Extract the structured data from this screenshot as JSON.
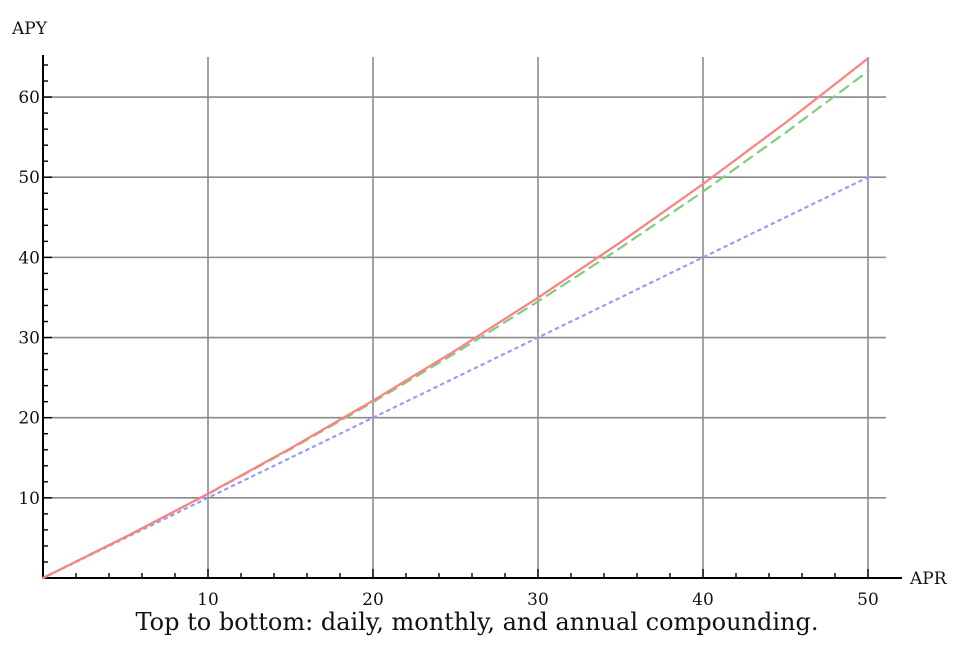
{
  "chart_data": {
    "type": "line",
    "title": "",
    "xlabel": "APR",
    "ylabel": "APY",
    "xlim": [
      0,
      50
    ],
    "ylim": [
      0,
      65
    ],
    "xticks": [
      10,
      20,
      30,
      40,
      50
    ],
    "yticks": [
      10,
      20,
      30,
      40,
      50,
      60
    ],
    "grid": true,
    "caption": "Top to bottom: daily, monthly, and annual compounding.",
    "x": [
      0,
      5,
      10,
      15,
      20,
      25,
      30,
      35,
      40,
      45,
      50
    ],
    "series": [
      {
        "color": "#ff8080",
        "line_style": "solid",
        "values": [
          0,
          5.13,
          10.52,
          16.18,
          22.13,
          28.39,
          34.97,
          41.89,
          49.15,
          56.8,
          64.82
        ]
      },
      {
        "color": "#80cc80",
        "line_style": "dashed",
        "values": [
          0,
          5.12,
          10.47,
          16.08,
          21.94,
          28.07,
          34.49,
          41.2,
          48.21,
          55.55,
          63.21
        ]
      },
      {
        "color": "#9999ff",
        "line_style": "dotted",
        "values": [
          0,
          5,
          10,
          15,
          20,
          25,
          30,
          35,
          40,
          45,
          50
        ]
      }
    ]
  }
}
